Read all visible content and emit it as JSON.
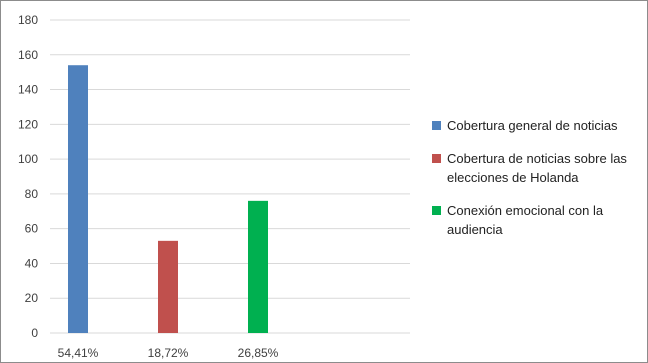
{
  "chart_data": {
    "type": "bar",
    "categories": [
      "54,41%",
      "18,72%",
      "26,85%"
    ],
    "series": [
      {
        "name": "Cobertura general de noticias",
        "values": [
          154,
          null,
          null
        ],
        "color": "#4f81bd"
      },
      {
        "name": "Cobertura de noticias sobre las elecciones de Holanda",
        "values": [
          null,
          53,
          null
        ],
        "color": "#c0504d"
      },
      {
        "name": "Conexión emocional con la audiencia",
        "values": [
          null,
          null,
          76
        ],
        "color": "#00b050"
      }
    ],
    "ylim": [
      0,
      180
    ],
    "yticks": [
      "0",
      "20",
      "40",
      "60",
      "80",
      "100",
      "120",
      "140",
      "160",
      "180"
    ],
    "grid": true,
    "legend_position": "right"
  }
}
